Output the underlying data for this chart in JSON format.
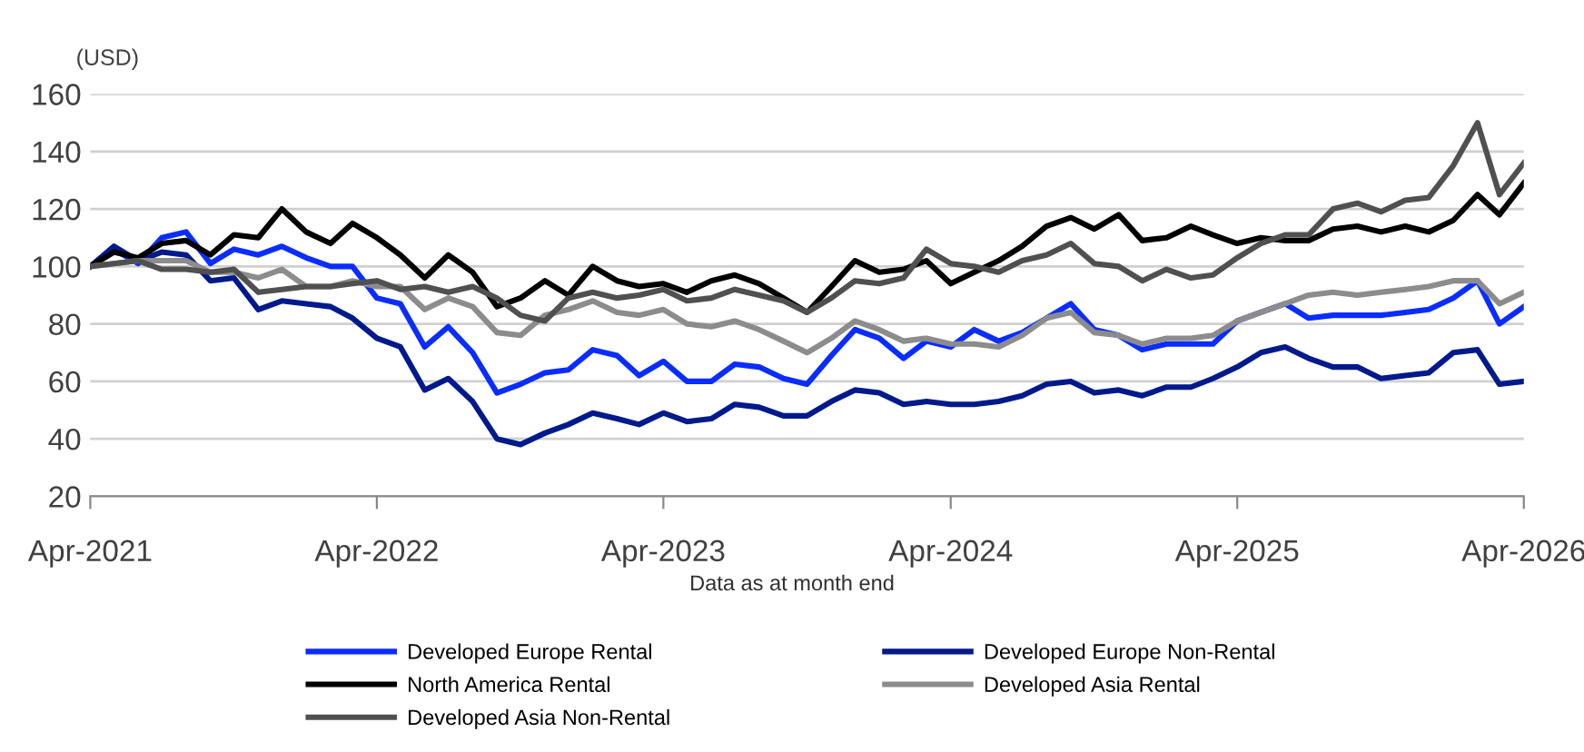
{
  "chart_data": {
    "type": "line",
    "ylabel": "(USD)",
    "annotations": [
      "Data as at month end"
    ],
    "x": [
      "2021-04",
      "2021-05",
      "2021-06",
      "2021-07",
      "2021-08",
      "2021-09",
      "2021-10",
      "2021-11",
      "2021-12",
      "2022-01",
      "2022-02",
      "2022-03",
      "2022-04",
      "2022-05",
      "2022-06",
      "2022-07",
      "2022-08",
      "2022-09",
      "2022-10",
      "2022-11",
      "2022-12",
      "2023-01",
      "2023-02",
      "2023-03",
      "2023-04",
      "2023-05",
      "2023-06",
      "2023-07",
      "2023-08",
      "2023-09",
      "2023-10",
      "2023-11",
      "2023-12",
      "2024-01",
      "2024-02",
      "2024-03",
      "2024-04",
      "2024-05",
      "2024-06",
      "2024-07",
      "2024-08",
      "2024-09",
      "2024-10",
      "2024-11",
      "2024-12",
      "2025-01",
      "2025-02",
      "2025-03",
      "2025-04",
      "2025-05",
      "2025-06",
      "2025-07",
      "2025-08",
      "2025-09",
      "2025-10",
      "2025-11",
      "2025-12",
      "2026-01",
      "2026-02",
      "2026-03",
      "2026-04"
    ],
    "series": [
      {
        "name": "Developed Europe Rental",
        "color": "#0a2dff",
        "values": [
          100,
          106,
          101,
          110,
          112,
          101,
          106,
          104,
          107,
          103,
          100,
          100,
          89,
          87,
          72,
          79,
          70,
          56,
          59,
          63,
          64,
          71,
          69,
          62,
          67,
          60,
          60,
          66,
          65,
          61,
          59,
          69,
          78,
          75,
          68,
          74,
          72,
          78,
          74,
          77,
          82,
          87,
          78,
          76,
          71,
          73,
          73,
          73,
          81,
          84,
          87,
          82,
          83,
          83,
          83,
          84,
          85,
          89,
          95,
          80,
          86
        ]
      },
      {
        "name": "Developed Europe Non-Rental",
        "color": "#001a8c",
        "values": [
          100,
          107,
          102,
          105,
          104,
          95,
          96,
          85,
          88,
          87,
          86,
          82,
          75,
          72,
          57,
          61,
          53,
          40,
          38,
          42,
          45,
          49,
          47,
          45,
          49,
          46,
          47,
          52,
          51,
          48,
          48,
          53,
          57,
          56,
          52,
          53,
          52,
          52,
          53,
          55,
          59,
          60,
          56,
          57,
          55,
          58,
          58,
          61,
          65,
          70,
          72,
          68,
          65,
          65,
          61,
          62,
          63,
          70,
          71,
          59,
          60
        ]
      },
      {
        "name": "North America Rental",
        "color": "#000000",
        "values": [
          100,
          105,
          103,
          108,
          109,
          104,
          111,
          110,
          120,
          112,
          108,
          115,
          110,
          104,
          96,
          104,
          98,
          86,
          89,
          95,
          90,
          100,
          95,
          93,
          94,
          91,
          95,
          97,
          94,
          89,
          84,
          93,
          102,
          98,
          99,
          102,
          94,
          98,
          102,
          107,
          114,
          117,
          113,
          118,
          109,
          110,
          114,
          111,
          108,
          110,
          109,
          109,
          113,
          114,
          112,
          114,
          112,
          116,
          125,
          118,
          129
        ]
      },
      {
        "name": "Developed Asia Rental",
        "color": "#8c8c8c",
        "values": [
          100,
          101,
          102,
          102,
          102,
          98,
          98,
          96,
          99,
          93,
          93,
          95,
          93,
          93,
          85,
          89,
          86,
          77,
          76,
          83,
          85,
          88,
          84,
          83,
          85,
          80,
          79,
          81,
          78,
          74,
          70,
          75,
          81,
          78,
          74,
          75,
          73,
          73,
          72,
          76,
          82,
          84,
          77,
          76,
          73,
          75,
          75,
          76,
          81,
          84,
          87,
          90,
          91,
          90,
          91,
          92,
          93,
          95,
          95,
          87,
          91
        ]
      },
      {
        "name": "Developed Asia Non-Rental",
        "color": "#505050",
        "values": [
          100,
          101,
          102,
          99,
          99,
          98,
          99,
          91,
          92,
          93,
          93,
          94,
          95,
          92,
          93,
          91,
          93,
          89,
          83,
          81,
          89,
          91,
          89,
          90,
          92,
          88,
          89,
          92,
          90,
          88,
          84,
          89,
          95,
          94,
          96,
          106,
          101,
          100,
          98,
          102,
          104,
          108,
          101,
          100,
          95,
          99,
          96,
          97,
          103,
          108,
          111,
          111,
          120,
          122,
          119,
          123,
          124,
          135,
          150,
          125,
          136
        ]
      }
    ],
    "xlim": [
      "2021-04",
      "2026-04"
    ],
    "xticks": [
      {
        "value": "2021-04",
        "label": "Apr-2021"
      },
      {
        "value": "2022-04",
        "label": "Apr-2022"
      },
      {
        "value": "2023-04",
        "label": "Apr-2023"
      },
      {
        "value": "2024-04",
        "label": "Apr-2024"
      },
      {
        "value": "2025-04",
        "label": "Apr-2025"
      },
      {
        "value": "2026-04",
        "label": "Apr-2026"
      }
    ],
    "ylim": [
      20,
      160
    ],
    "yticks": [
      20,
      40,
      60,
      80,
      100,
      120,
      140,
      160
    ],
    "grid": "y",
    "legend": "bottom",
    "line_style": "solid",
    "marker": "none"
  }
}
